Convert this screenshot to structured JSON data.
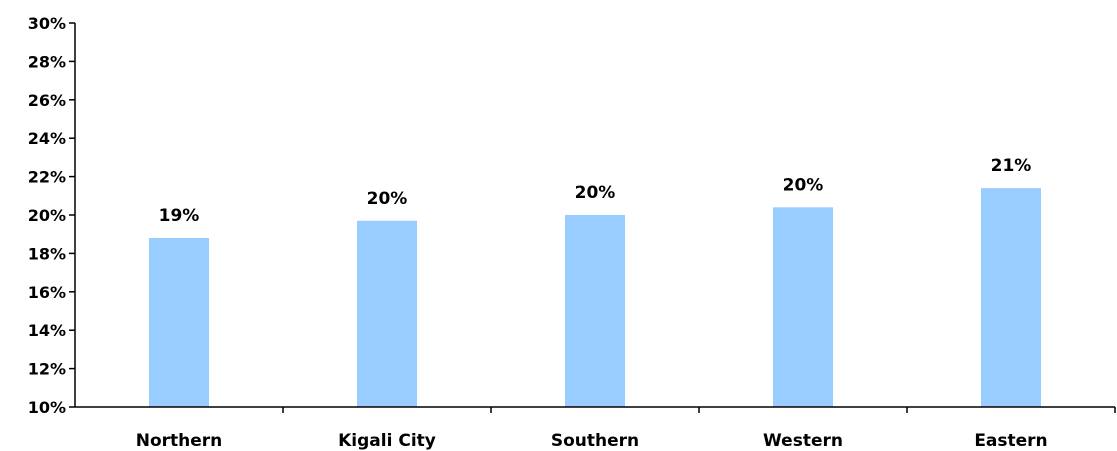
{
  "chart_data": {
    "type": "bar",
    "categories": [
      "Northern",
      "Kigali City",
      "Southern",
      "Western",
      "Eastern"
    ],
    "values": [
      18.8,
      19.7,
      20.0,
      20.4,
      21.4
    ],
    "data_labels": [
      "19%",
      "20%",
      "20%",
      "20%",
      "21%"
    ],
    "ylim": [
      10,
      30
    ],
    "yticks": [
      10,
      12,
      14,
      16,
      18,
      20,
      22,
      24,
      26,
      28,
      30
    ],
    "ytick_labels": [
      "10%",
      "12%",
      "14%",
      "16%",
      "18%",
      "20%",
      "22%",
      "24%",
      "26%",
      "28%",
      "30%"
    ],
    "title": "",
    "xlabel": "",
    "ylabel": "",
    "grid": false,
    "legend": false,
    "bar_color": "#99CCFF"
  }
}
